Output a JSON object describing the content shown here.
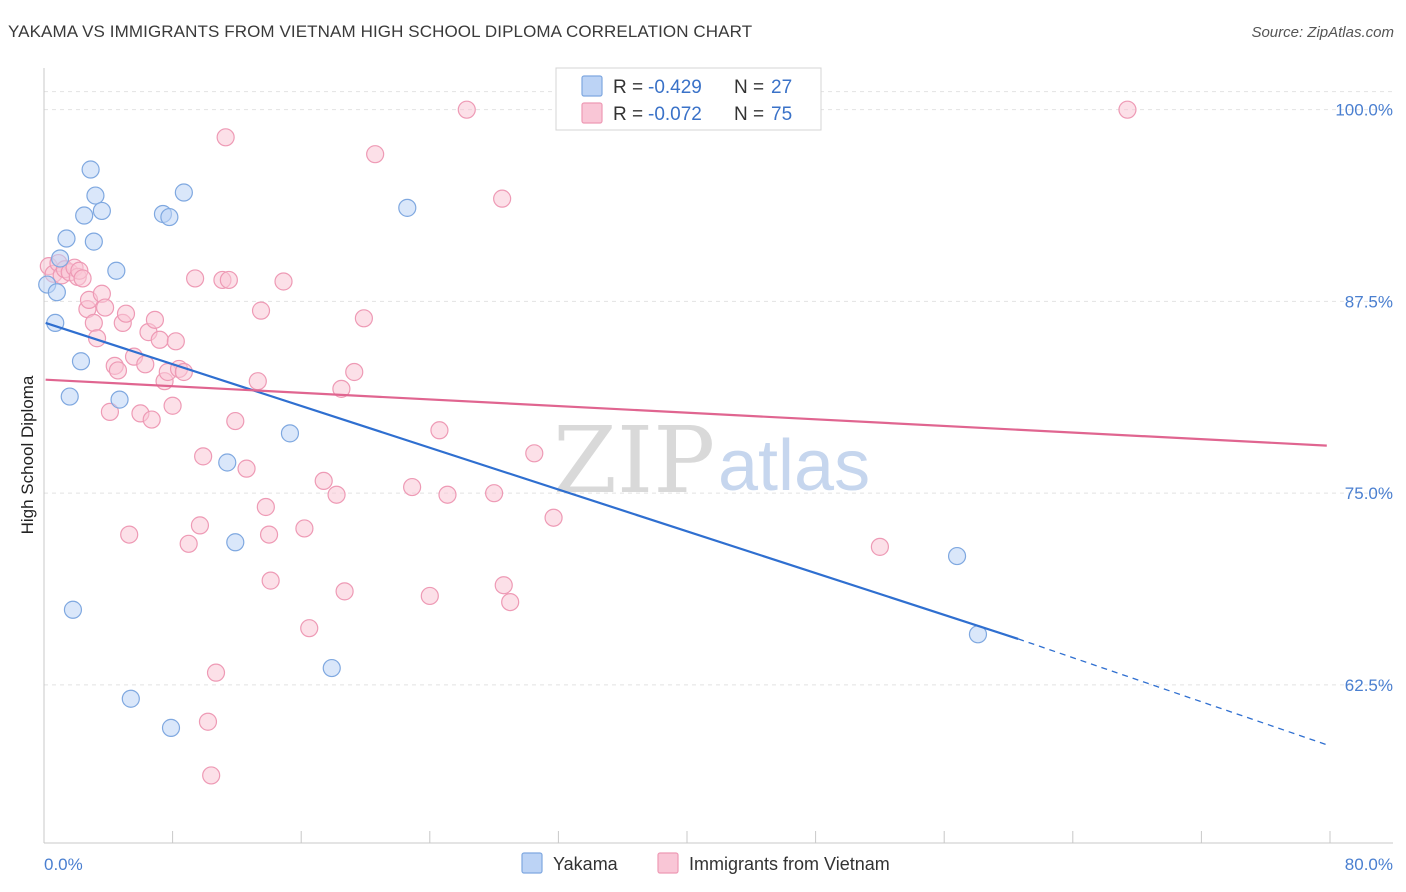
{
  "header": {
    "title": "YAKAMA VS IMMIGRANTS FROM VIETNAM HIGH SCHOOL DIPLOMA CORRELATION CHART",
    "source": "Source: ZipAtlas.com"
  },
  "watermark": {
    "zip": "ZIP",
    "atlas": "atlas"
  },
  "legend_top": [
    {
      "r_label": "R = ",
      "r_value": "-0.429",
      "n_label": "N = ",
      "n_value": "27"
    },
    {
      "r_label": "R = ",
      "r_value": "-0.072",
      "n_label": "N = ",
      "n_value": "75"
    }
  ],
  "colors": {
    "yakama_fill": "#bcd3f5",
    "yakama_stroke": "#7fa8e0",
    "yakama_line": "#2f6fd0",
    "vietnam_fill": "#f9c6d6",
    "vietnam_stroke": "#ee9ab5",
    "vietnam_line": "#e06590",
    "grid": "#e2e2e2",
    "tick_text": "#4a7fd0"
  },
  "chart_data": {
    "type": "scatter",
    "title": "YAKAMA VS IMMIGRANTS FROM VIETNAM HIGH SCHOOL DIPLOMA CORRELATION CHART",
    "xlabel": "",
    "ylabel": "High School Diploma",
    "xlim": [
      0,
      80
    ],
    "ylim": [
      52,
      102
    ],
    "x_tick_labels": {
      "min": "0.0%",
      "max": "80.0%"
    },
    "y_ticks": [
      {
        "value": 100,
        "label": "100.0%"
      },
      {
        "value": 87.5,
        "label": "87.5%"
      },
      {
        "value": 75,
        "label": "75.0%"
      },
      {
        "value": 62.5,
        "label": "62.5%"
      }
    ],
    "grid": "horizontal dashed",
    "legend": "bottom-center",
    "series": [
      {
        "name": "Yakama",
        "r": -0.429,
        "n": 27,
        "trend": {
          "x_start": 0.1,
          "y_start": 86.1,
          "x_solid_end": 60.6,
          "y_solid_end": 65.5,
          "x_dash_end": 79.8,
          "y_dash_end": 58.6
        },
        "points": [
          [
            0.2,
            88.6
          ],
          [
            0.8,
            88.1
          ],
          [
            1.0,
            90.3
          ],
          [
            1.4,
            91.6
          ],
          [
            1.6,
            81.3
          ],
          [
            1.8,
            67.4
          ],
          [
            2.3,
            83.6
          ],
          [
            2.5,
            93.1
          ],
          [
            2.9,
            96.1
          ],
          [
            3.2,
            94.4
          ],
          [
            3.1,
            91.4
          ],
          [
            3.6,
            93.4
          ],
          [
            4.5,
            89.5
          ],
          [
            4.7,
            81.1
          ],
          [
            5.4,
            61.6
          ],
          [
            7.4,
            93.2
          ],
          [
            7.8,
            93.0
          ],
          [
            7.9,
            59.7
          ],
          [
            8.7,
            94.6
          ],
          [
            11.4,
            77.0
          ],
          [
            11.9,
            71.8
          ],
          [
            15.3,
            78.9
          ],
          [
            17.9,
            63.6
          ],
          [
            22.6,
            93.6
          ],
          [
            56.8,
            70.9
          ],
          [
            58.1,
            65.8
          ],
          [
            0.7,
            86.1
          ]
        ]
      },
      {
        "name": "Immigrants from Vietnam",
        "r": -0.072,
        "n": 75,
        "trend": {
          "x_start": 0.1,
          "y_start": 82.4,
          "x_end": 79.8,
          "y_end": 78.1
        },
        "points": [
          [
            0.3,
            89.8
          ],
          [
            0.6,
            89.3
          ],
          [
            0.9,
            90.0
          ],
          [
            1.1,
            89.2
          ],
          [
            1.3,
            89.6
          ],
          [
            1.6,
            89.4
          ],
          [
            1.9,
            89.7
          ],
          [
            2.1,
            89.1
          ],
          [
            2.2,
            89.5
          ],
          [
            2.4,
            89.0
          ],
          [
            2.7,
            87.0
          ],
          [
            2.8,
            87.6
          ],
          [
            3.1,
            86.1
          ],
          [
            3.3,
            85.1
          ],
          [
            3.6,
            88.0
          ],
          [
            3.8,
            87.1
          ],
          [
            4.1,
            80.3
          ],
          [
            4.4,
            83.3
          ],
          [
            4.6,
            83.0
          ],
          [
            4.9,
            86.1
          ],
          [
            5.1,
            86.7
          ],
          [
            5.3,
            72.3
          ],
          [
            5.6,
            83.9
          ],
          [
            6.0,
            80.2
          ],
          [
            6.3,
            83.4
          ],
          [
            6.5,
            85.5
          ],
          [
            6.7,
            79.8
          ],
          [
            6.9,
            86.3
          ],
          [
            7.2,
            85.0
          ],
          [
            7.5,
            82.3
          ],
          [
            7.7,
            82.9
          ],
          [
            8.0,
            80.7
          ],
          [
            8.2,
            84.9
          ],
          [
            8.4,
            83.1
          ],
          [
            8.7,
            82.9
          ],
          [
            9.0,
            71.7
          ],
          [
            9.4,
            89.0
          ],
          [
            9.7,
            72.9
          ],
          [
            9.9,
            77.4
          ],
          [
            10.2,
            60.1
          ],
          [
            10.4,
            56.6
          ],
          [
            10.7,
            63.3
          ],
          [
            11.1,
            88.9
          ],
          [
            11.3,
            98.2
          ],
          [
            11.5,
            88.9
          ],
          [
            11.9,
            79.7
          ],
          [
            12.6,
            76.6
          ],
          [
            13.3,
            82.3
          ],
          [
            13.5,
            86.9
          ],
          [
            13.8,
            74.1
          ],
          [
            14.0,
            72.3
          ],
          [
            14.1,
            69.3
          ],
          [
            14.9,
            88.8
          ],
          [
            16.2,
            72.7
          ],
          [
            16.5,
            66.2
          ],
          [
            17.4,
            75.8
          ],
          [
            18.2,
            74.9
          ],
          [
            18.5,
            81.8
          ],
          [
            18.7,
            68.6
          ],
          [
            19.3,
            82.9
          ],
          [
            19.9,
            86.4
          ],
          [
            20.6,
            97.1
          ],
          [
            22.9,
            75.4
          ],
          [
            24.0,
            68.3
          ],
          [
            24.6,
            79.1
          ],
          [
            25.1,
            74.9
          ],
          [
            26.3,
            100.0
          ],
          [
            28.0,
            75.0
          ],
          [
            28.5,
            94.2
          ],
          [
            28.6,
            69.0
          ],
          [
            29.0,
            67.9
          ],
          [
            30.5,
            77.6
          ],
          [
            31.7,
            73.4
          ],
          [
            52.0,
            71.5
          ],
          [
            67.4,
            100.0
          ]
        ]
      }
    ]
  }
}
